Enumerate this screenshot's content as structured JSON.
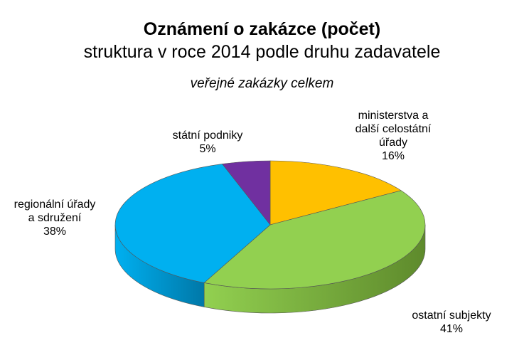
{
  "chart_data": {
    "type": "pie",
    "title": "Oznámení o zakázce (počet)",
    "subtitle": "struktura v roce 2014 podle druhu zadavatele",
    "subtitle2": "veřejné zakázky celkem",
    "slices": [
      {
        "label_lines": [
          "ministerstva a",
          "další celostátní",
          "úřady"
        ],
        "value": 16,
        "value_label": "16%",
        "color": "#FFC000",
        "side_color": "#B08400"
      },
      {
        "label_lines": [
          "ostatní subjekty"
        ],
        "value": 41,
        "value_label": "41%",
        "color": "#92D050",
        "side_color": "#5E8A2C"
      },
      {
        "label_lines": [
          "regionální úřady",
          "a sdružení"
        ],
        "value": 38,
        "value_label": "38%",
        "color": "#00B0F0",
        "side_color": "#0078A8"
      },
      {
        "label_lines": [
          "státní podniky"
        ],
        "value": 5,
        "value_label": "5%",
        "color": "#7030A0",
        "side_color": "#4A1F6B"
      }
    ]
  }
}
